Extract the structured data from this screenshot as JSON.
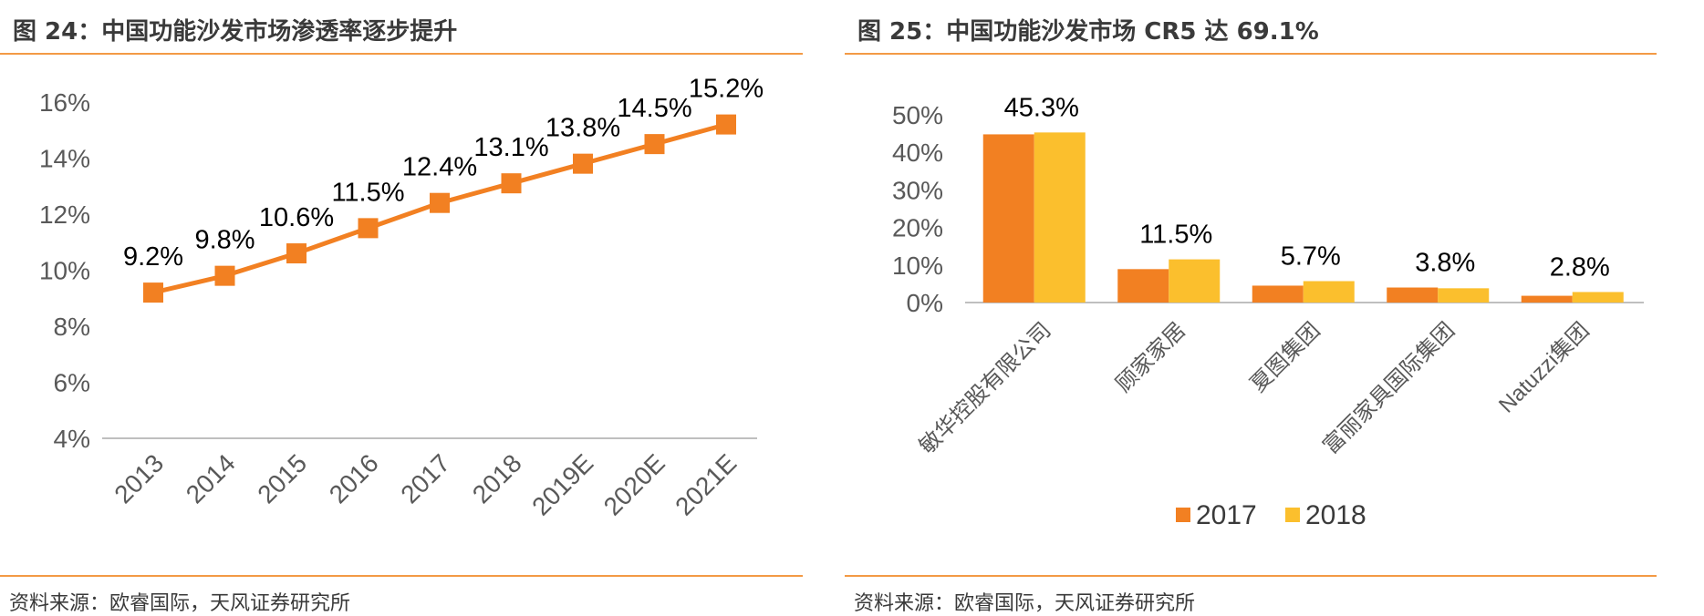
{
  "left": {
    "title": "图 24：中国功能沙发市场渗透率逐步提升",
    "source": "资料来源：欧睿国际，天风证券研究所"
  },
  "right": {
    "title": "图 25：中国功能沙发市场 CR5 达 69.1%",
    "source": "资料来源：欧睿国际，天风证券研究所"
  },
  "chart_data": [
    {
      "type": "line",
      "categories": [
        "2013",
        "2014",
        "2015",
        "2016",
        "2017",
        "2018",
        "2019E",
        "2020E",
        "2021E"
      ],
      "values": [
        9.2,
        9.8,
        10.6,
        11.5,
        12.4,
        13.1,
        13.8,
        14.5,
        15.2
      ],
      "data_labels": [
        "9.2%",
        "9.8%",
        "10.6%",
        "11.5%",
        "12.4%",
        "13.1%",
        "13.8%",
        "14.5%",
        "15.2%"
      ],
      "yticks": [
        "4%",
        "6%",
        "8%",
        "10%",
        "12%",
        "14%",
        "16%"
      ],
      "ylim": [
        4,
        16
      ],
      "color": "#f28022",
      "marker": "square",
      "grid": false
    },
    {
      "type": "bar",
      "categories": [
        "敏华控股有限公司",
        "顾家家居",
        "夏图集团",
        "富丽家具国际集团",
        "Natuzzi集团"
      ],
      "series": [
        {
          "name": "2017",
          "values": [
            44.8,
            8.9,
            4.5,
            4.0,
            1.8
          ],
          "color": "#f28022"
        },
        {
          "name": "2018",
          "values": [
            45.3,
            11.5,
            5.7,
            3.8,
            2.8
          ],
          "color": "#fbbf2d"
        }
      ],
      "data_labels": [
        "45.3%",
        "11.5%",
        "5.7%",
        "3.8%",
        "2.8%"
      ],
      "yticks": [
        "0%",
        "10%",
        "20%",
        "30%",
        "40%",
        "50%"
      ],
      "ylim": [
        0,
        50
      ],
      "legend": "bottom-center",
      "grid": false
    }
  ]
}
